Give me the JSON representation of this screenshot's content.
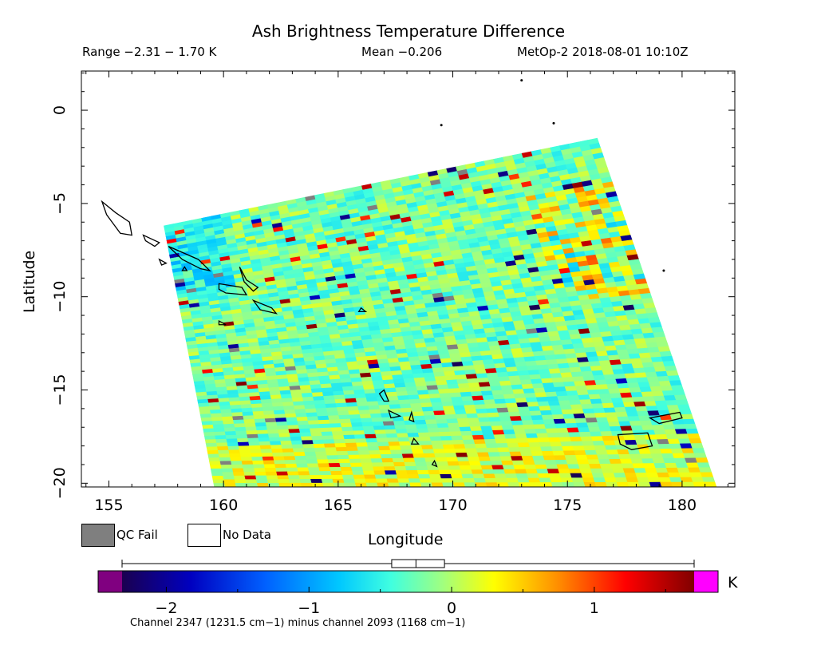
{
  "header": {
    "title": "Ash Brightness Temperature Difference",
    "range_text": "Range −2.31 − 1.70 K",
    "mean_text": "Mean −0.206",
    "satellite_time": "MetOp-2 2018-08-01 10:10Z"
  },
  "axes": {
    "xlabel": "Longitude",
    "ylabel": "Latitude",
    "x_ticks": [
      "155",
      "160",
      "165",
      "170",
      "175",
      "180"
    ],
    "y_ticks": [
      "0",
      "−5",
      "−10",
      "−15",
      "−20"
    ],
    "xlim": [
      153.8,
      182.3
    ],
    "ylim": [
      -20.2,
      2.1
    ]
  },
  "legend": {
    "qc_fail_label": "QC Fail",
    "no_data_label": "No Data",
    "qc_fail_color": "#7f7f7f",
    "no_data_color": "#ffffff"
  },
  "colorbar": {
    "unit": "K",
    "range": [
      -2.31,
      1.7
    ],
    "ticks": [
      "−2",
      "−1",
      "0",
      "1"
    ],
    "tick_values": [
      -2,
      -1,
      0,
      1
    ],
    "under_color": "#800080",
    "over_color": "#ff00ff",
    "caption": "Channel 2347 (1231.5 cm−1) minus channel 2093 (1168 cm−1)"
  },
  "boxplot": {
    "min": -2.31,
    "q1": -0.42,
    "median": -0.25,
    "q3": -0.05,
    "max": 1.7
  },
  "swath": {
    "corners_lonlat": [
      [
        157.4,
        -6.2
      ],
      [
        176.3,
        -1.5
      ],
      [
        181.5,
        -20.2
      ],
      [
        159.6,
        -20.2
      ]
    ],
    "mean_value": -0.206
  }
}
